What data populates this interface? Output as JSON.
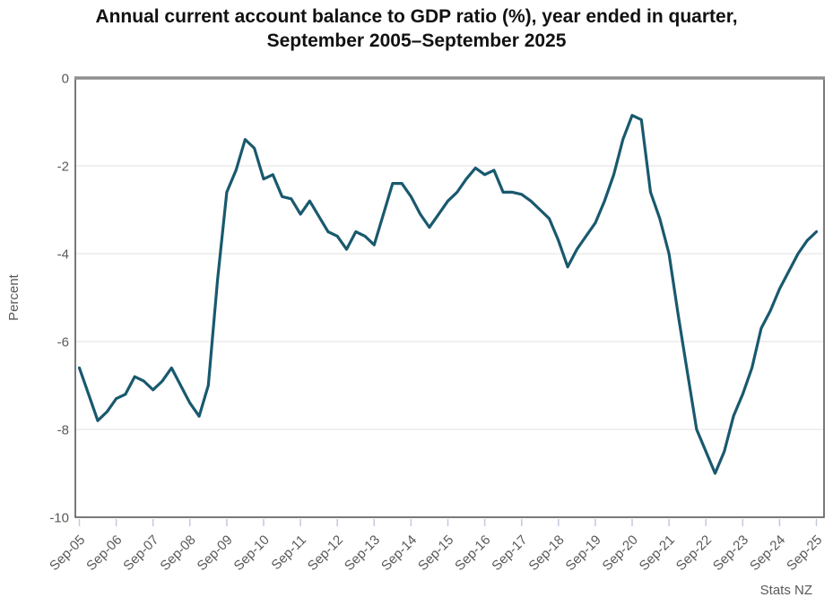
{
  "title": {
    "line1": "Annual current account balance to GDP ratio (%), year ended in quarter,",
    "line2": "September 2005–September 2025"
  },
  "source": "Stats NZ",
  "colors": {
    "line": "#19596E",
    "grid": "#e7e7e7",
    "frame": "#4d4d4d",
    "frame_top": "#8f8f8f",
    "tick": "#c3c8de",
    "text": "#595959",
    "title_text": "#111111",
    "background": "#ffffff"
  },
  "chart_data": {
    "type": "line",
    "title": "Annual current account balance to GDP ratio (%), year ended in quarter, September 2005–September 2025",
    "xlabel": "",
    "ylabel": "Percent",
    "ylim": [
      -10,
      0
    ],
    "yticks": [
      0,
      -2,
      -4,
      -6,
      -8,
      -10
    ],
    "gridlines_at": [
      -2,
      -4,
      -6,
      -8
    ],
    "legend": "none",
    "x_tick_labels": [
      "Sep-05",
      "Sep-06",
      "Sep-07",
      "Sep-08",
      "Sep-09",
      "Sep-10",
      "Sep-11",
      "Sep-12",
      "Sep-13",
      "Sep-14",
      "Sep-15",
      "Sep-16",
      "Sep-17",
      "Sep-18",
      "Sep-19",
      "Sep-20",
      "Sep-21",
      "Sep-22",
      "Sep-23",
      "Sep-24",
      "Sep-25"
    ],
    "series": [
      {
        "name": "Annual current account balance to GDP ratio",
        "color": "#19596E",
        "x": [
          "Sep-05",
          "Dec-05",
          "Mar-06",
          "Jun-06",
          "Sep-06",
          "Dec-06",
          "Mar-07",
          "Jun-07",
          "Sep-07",
          "Dec-07",
          "Mar-08",
          "Jun-08",
          "Sep-08",
          "Dec-08",
          "Mar-09",
          "Jun-09",
          "Sep-09",
          "Dec-09",
          "Mar-10",
          "Jun-10",
          "Sep-10",
          "Dec-10",
          "Mar-11",
          "Jun-11",
          "Sep-11",
          "Dec-11",
          "Mar-12",
          "Jun-12",
          "Sep-12",
          "Dec-12",
          "Mar-13",
          "Jun-13",
          "Sep-13",
          "Dec-13",
          "Mar-14",
          "Jun-14",
          "Sep-14",
          "Dec-14",
          "Mar-15",
          "Jun-15",
          "Sep-15",
          "Dec-15",
          "Mar-16",
          "Jun-16",
          "Sep-16",
          "Dec-16",
          "Mar-17",
          "Jun-17",
          "Sep-17",
          "Dec-17",
          "Mar-18",
          "Jun-18",
          "Sep-18",
          "Dec-18",
          "Mar-19",
          "Jun-19",
          "Sep-19",
          "Dec-19",
          "Mar-20",
          "Jun-20",
          "Sep-20",
          "Dec-20",
          "Mar-21",
          "Jun-21",
          "Sep-21",
          "Dec-21",
          "Mar-22",
          "Jun-22",
          "Sep-22",
          "Dec-22",
          "Mar-23",
          "Jun-23",
          "Sep-23",
          "Dec-23",
          "Mar-24",
          "Jun-24",
          "Sep-24",
          "Dec-24",
          "Mar-25",
          "Jun-25",
          "Sep-25"
        ],
        "values": [
          -6.6,
          -7.2,
          -7.8,
          -7.6,
          -7.3,
          -7.2,
          -6.8,
          -6.9,
          -7.1,
          -6.9,
          -6.6,
          -7.0,
          -7.4,
          -7.7,
          -7.0,
          -4.6,
          -2.6,
          -2.1,
          -1.4,
          -1.6,
          -2.3,
          -2.2,
          -2.7,
          -2.75,
          -3.1,
          -2.8,
          -3.15,
          -3.5,
          -3.6,
          -3.9,
          -3.5,
          -3.6,
          -3.8,
          -3.1,
          -2.4,
          -2.4,
          -2.7,
          -3.1,
          -3.4,
          -3.1,
          -2.8,
          -2.6,
          -2.3,
          -2.05,
          -2.2,
          -2.1,
          -2.6,
          -2.6,
          -2.65,
          -2.8,
          -3.0,
          -3.2,
          -3.7,
          -4.3,
          -3.9,
          -3.6,
          -3.3,
          -2.8,
          -2.2,
          -1.4,
          -0.85,
          -0.95,
          -2.6,
          -3.2,
          -4.0,
          -5.4,
          -6.7,
          -8.0,
          -8.5,
          -9.0,
          -8.5,
          -7.7,
          -7.2,
          -6.6,
          -5.7,
          -5.3,
          -4.8,
          -4.4,
          -4.0,
          -3.7,
          -3.5
        ]
      }
    ]
  }
}
